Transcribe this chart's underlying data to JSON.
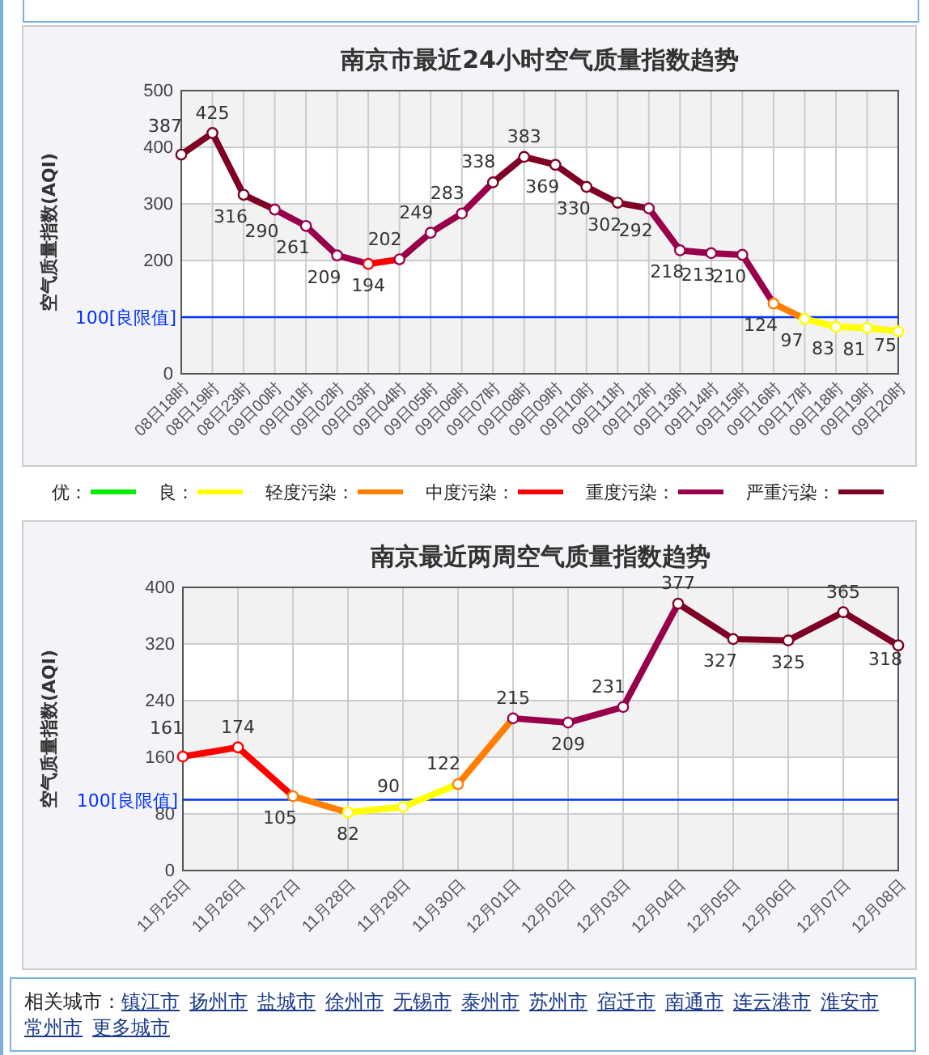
{
  "chart_data": [
    {
      "type": "line",
      "title": "南京市最近24小时空气质量指数趋势",
      "ylabel": "空气质量指数(AQI)",
      "categories": [
        "08日18时",
        "08日19时",
        "08日23时",
        "09日00时",
        "09日01时",
        "09日02时",
        "09日03时",
        "09日04时",
        "09日05时",
        "09日06时",
        "09日07时",
        "09日08时",
        "09日09时",
        "09日10时",
        "09日11时",
        "09日12时",
        "09日13时",
        "09日14时",
        "09日15时",
        "09日16时",
        "09日17时",
        "09日18时",
        "09日19时",
        "09日20时"
      ],
      "series": [
        {
          "values": [
            387,
            425,
            316,
            290,
            261,
            209,
            194,
            202,
            249,
            283,
            338,
            383,
            369,
            330,
            302,
            292,
            218,
            213,
            210,
            124,
            97,
            83,
            81,
            75
          ],
          "colors": [
            "#7e0023",
            "#7e0023",
            "#7e0023",
            "#99004c",
            "#99004c",
            "#99004c",
            "#ff0000",
            "#99004c",
            "#99004c",
            "#99004c",
            "#7e0023",
            "#7e0023",
            "#7e0023",
            "#7e0023",
            "#7e0023",
            "#99004c",
            "#99004c",
            "#99004c",
            "#99004c",
            "#ff7e00",
            "#ffff00",
            "#ffff00",
            "#ffff00",
            "#ffff00"
          ]
        },
        {
          "name": "优：",
          "color": "#00ee00",
          "values": [
            null,
            null,
            null,
            null,
            null,
            null,
            null,
            null,
            null,
            null,
            null,
            null,
            null,
            null,
            null,
            null,
            null,
            null,
            null,
            null,
            null,
            null,
            null,
            null
          ]
        },
        {
          "name": "良：",
          "color": "#ffff00",
          "values": [
            null,
            null,
            null,
            null,
            null,
            null,
            null,
            null,
            null,
            null,
            null,
            null,
            null,
            null,
            null,
            null,
            null,
            null,
            null,
            null,
            null,
            null,
            null,
            null
          ]
        },
        {
          "name": "轻度污染：",
          "color": "#ff7e00",
          "values": [
            null,
            null,
            null,
            null,
            null,
            null,
            null,
            null,
            null,
            null,
            null,
            null,
            null,
            null,
            null,
            null,
            null,
            null,
            null,
            null,
            null,
            null,
            null,
            null
          ]
        },
        {
          "name": "中度污染：",
          "color": "#ff0000",
          "values": [
            null,
            null,
            null,
            null,
            null,
            null,
            null,
            null,
            null,
            null,
            null,
            null,
            null,
            null,
            null,
            null,
            null,
            null,
            null,
            null,
            null,
            null,
            null,
            null
          ]
        },
        {
          "name": "重度污染：",
          "color": "#99004c",
          "values": [
            null,
            null,
            null,
            null,
            null,
            null,
            null,
            null,
            null,
            null,
            null,
            null,
            null,
            null,
            null,
            null,
            null,
            null,
            null,
            null,
            null,
            null,
            null,
            null
          ]
        },
        {
          "name": "严重污染：",
          "color": "#7e0023",
          "values": [
            null,
            null,
            null,
            null,
            null,
            null,
            null,
            null,
            null,
            null,
            null,
            null,
            null,
            null,
            null,
            null,
            null,
            null,
            null,
            null,
            null,
            null,
            null,
            null
          ]
        }
      ],
      "ylim": [
        0,
        500
      ],
      "yticks": [
        0,
        {
          "value": 100,
          "label": null
        },
        200,
        300,
        400,
        500
      ],
      "grid": true,
      "marker": "circle",
      "data_labels": true,
      "legend": "bottom",
      "ref_lines": [
        {
          "axis": "y",
          "value": 100,
          "label": "100[良限值]",
          "color": "#0033ff"
        }
      ]
    },
    {
      "type": "line",
      "title": "南京最近两周空气质量指数趋势",
      "ylabel": "空气质量指数(AQI)",
      "categories": [
        "11月25日",
        "11月26日",
        "11月27日",
        "11月28日",
        "11月29日",
        "11月30日",
        "12月01日",
        "12月02日",
        "12月03日",
        "12月04日",
        "12月05日",
        "12月06日",
        "12月07日",
        "12月08日"
      ],
      "series": [
        {
          "values": [
            161,
            174,
            105,
            82,
            90,
            122,
            215,
            209,
            231,
            377,
            327,
            325,
            365,
            318
          ],
          "colors": [
            "#ff0000",
            "#ff0000",
            "#ff7e00",
            "#ffff00",
            "#ffff00",
            "#ff7e00",
            "#99004c",
            "#99004c",
            "#99004c",
            "#7e0023",
            "#7e0023",
            "#7e0023",
            "#7e0023",
            "#7e0023"
          ]
        }
      ],
      "ylim": [
        0,
        400
      ],
      "yticks": [
        0,
        80,
        160,
        240,
        320,
        400
      ],
      "grid": true,
      "marker": "circle",
      "data_labels": true,
      "ref_lines": [
        {
          "axis": "y",
          "value": 100,
          "label": "100[良限值]",
          "color": "#0033ff"
        }
      ],
      "annotations": [
        "相关城市：",
        "镇江市",
        "扬州市",
        "盐城市",
        "徐州市",
        "无锡市",
        "泰州市",
        "苏州市",
        "宿迁市",
        "南通市",
        "连云港市",
        "淮安市",
        "常州市",
        "更多城市"
      ]
    }
  ]
}
